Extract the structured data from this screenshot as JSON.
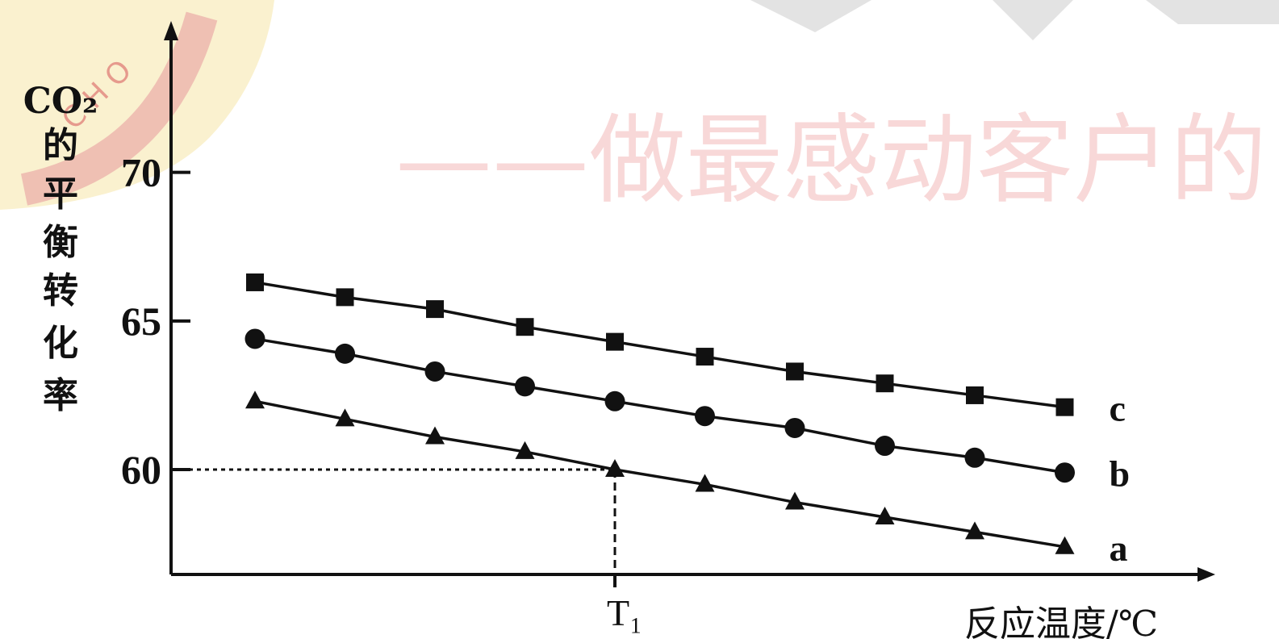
{
  "watermark": {
    "slogan": "——做最感动客户的",
    "logo_fragment": "C H O"
  },
  "chart_data": {
    "type": "line",
    "title": "",
    "ylabel_lines": [
      "CO₂",
      "的",
      "平",
      "衡",
      "转",
      "化",
      "率"
    ],
    "xlabel": "反应温度/℃",
    "y_ticks": [
      60,
      65,
      70
    ],
    "x_marker_label": "T₁",
    "x_marker_index": 4,
    "reference_value": 60,
    "ylim": [
      54.3,
      75.8
    ],
    "x_count": 10,
    "grid": false,
    "series": [
      {
        "name": "c",
        "marker": "square",
        "values": [
          66.3,
          65.8,
          65.4,
          64.8,
          64.3,
          63.8,
          63.3,
          62.9,
          62.5,
          62.1
        ]
      },
      {
        "name": "b",
        "marker": "circle",
        "values": [
          64.4,
          63.9,
          63.3,
          62.8,
          62.3,
          61.8,
          61.4,
          60.8,
          60.4,
          59.9
        ]
      },
      {
        "name": "a",
        "marker": "triangle",
        "values": [
          62.3,
          61.7,
          61.1,
          60.6,
          60.0,
          59.5,
          58.9,
          58.4,
          57.9,
          57.4
        ]
      }
    ]
  }
}
